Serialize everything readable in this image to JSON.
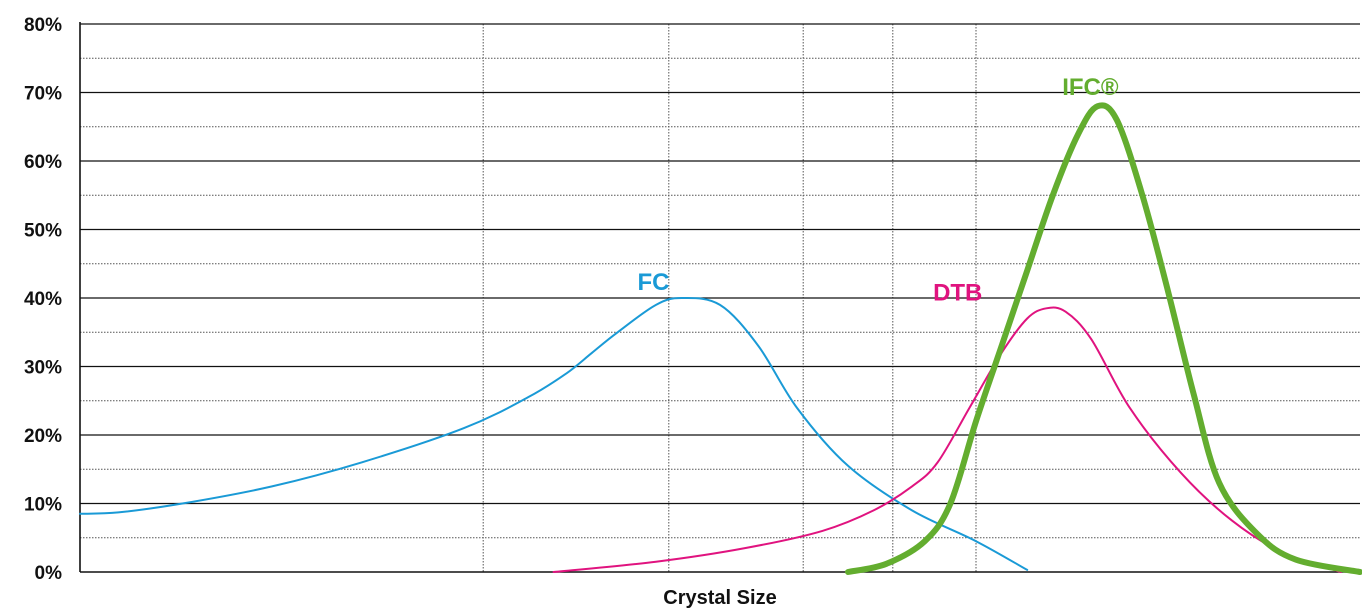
{
  "chart_data": {
    "type": "line",
    "title": "",
    "xlabel": "Crystal Size",
    "ylabel": "",
    "xlim": [
      0,
      100
    ],
    "ylim": [
      0,
      80
    ],
    "yticks": [
      "0%",
      "10%",
      "20%",
      "30%",
      "40%",
      "50%",
      "60%",
      "70%",
      "80%"
    ],
    "grid": true,
    "series": [
      {
        "name": "FC",
        "color": "#1a9ad6",
        "x": [
          0,
          3,
          8,
          15,
          22,
          30,
          35,
          38,
          40,
          42,
          45,
          47,
          50,
          53,
          56,
          60,
          65,
          70,
          74
        ],
        "y": [
          8.5,
          8.7,
          10,
          12.5,
          16,
          21,
          25.5,
          29,
          32,
          35,
          39,
          40,
          39,
          33,
          24,
          15.5,
          9,
          4.5,
          0.3
        ]
      },
      {
        "name": "DTB",
        "color": "#e0137f",
        "x": [
          37,
          45,
          52,
          58,
          62,
          65,
          67,
          69.5,
          72,
          74,
          75.5,
          77,
          79,
          82,
          86,
          90,
          94,
          98.5
        ],
        "y": [
          0,
          1.5,
          3.5,
          6,
          9,
          12.5,
          16,
          24,
          32,
          37,
          38.5,
          38,
          34,
          24,
          14.5,
          7.5,
          2.8,
          0
        ]
      },
      {
        "name": "IFC®",
        "color": "#63ad2f",
        "x": [
          60,
          63,
          66,
          68,
          70,
          72,
          74,
          76,
          78,
          79.5,
          81,
          83,
          85,
          87,
          89,
          92,
          95,
          100
        ],
        "y": [
          0,
          1.2,
          4.5,
          10,
          22,
          33,
          44,
          55,
          64,
          68,
          66,
          55,
          41,
          26,
          13,
          5.5,
          1.8,
          0
        ]
      }
    ],
    "annotations": [
      {
        "text": "FC",
        "series": 0,
        "x": 44.8,
        "y": 40
      },
      {
        "text": "DTB",
        "series": 1,
        "x": 70.5,
        "y": 38.5
      },
      {
        "text": "IFC®",
        "series": 2,
        "x": 80.2,
        "y": 68.5
      }
    ]
  }
}
